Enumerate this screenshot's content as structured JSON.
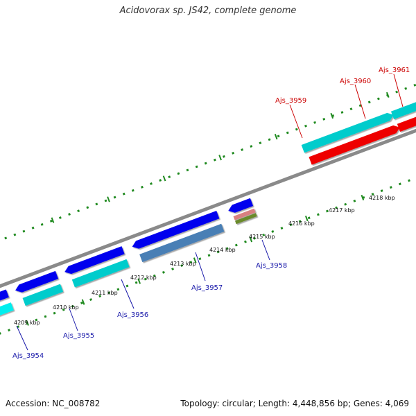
{
  "title": "Acidovorax sp. JS42, complete genome",
  "footer": {
    "accession": "Accession: NC_008782",
    "topology": "Topology: circular; Length: 4,448,856 bp; Genes: 4,069"
  },
  "colors": {
    "backbone": "#8a8a8a",
    "tick": "#1f8a1f",
    "label_forward": "#cc0000",
    "label_reverse": "#1a1aaa"
  },
  "scale_labels": [
    "4209 kbp",
    "4210 kbp",
    "4211 kbp",
    "4212 kbp",
    "4213 kbp",
    "4214 kbp",
    "4215 kbp",
    "4216 kbp",
    "4217 kbp",
    "4218 kbp"
  ],
  "genes": [
    {
      "id": "Ajs_3954",
      "strand": "reverse",
      "color": "#0000ee"
    },
    {
      "id": "Ajs_3955",
      "strand": "reverse",
      "color": "#00cccc"
    },
    {
      "id": "Ajs_3956",
      "strand": "reverse",
      "color": "#00cccc"
    },
    {
      "id": "Ajs_3957",
      "strand": "reverse",
      "color": "#4a7fb5"
    },
    {
      "id": "Ajs_3958",
      "strand": "reverse",
      "color": "#d98080"
    },
    {
      "id": "Ajs_3959",
      "strand": "forward",
      "color": "#00cccc"
    },
    {
      "id": "Ajs_3960",
      "strand": "forward",
      "color": "#00cccc"
    },
    {
      "id": "Ajs_3961",
      "strand": "forward",
      "color": "#666666"
    }
  ]
}
